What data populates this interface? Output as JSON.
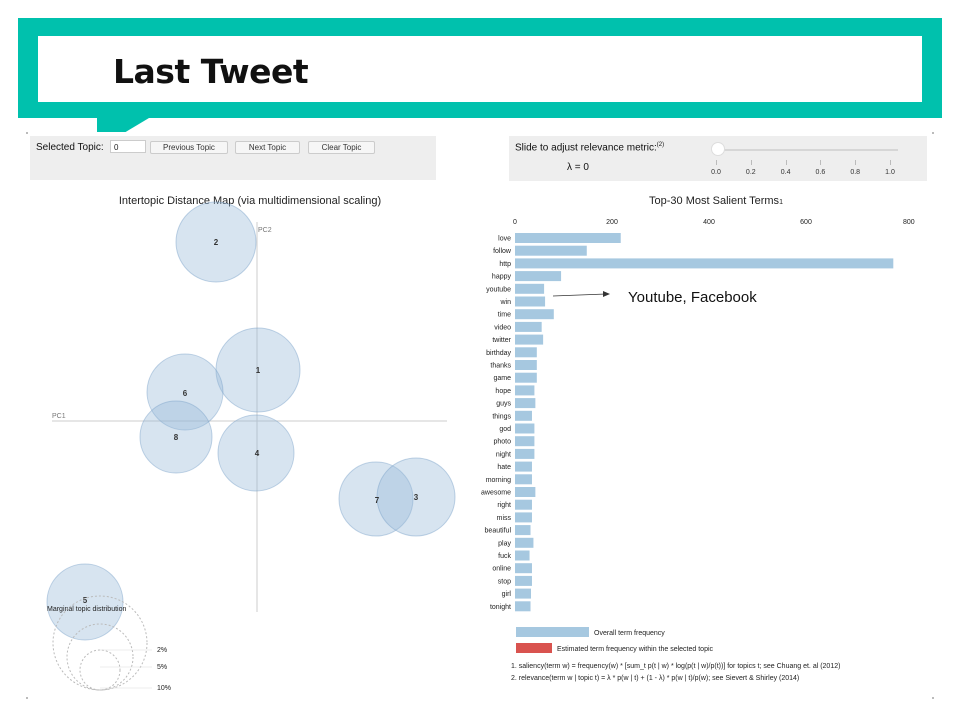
{
  "slide": {
    "title": "Last Tweet"
  },
  "left_controls": {
    "selected_label": "Selected Topic:",
    "selected_value": "0",
    "prev_label": "Previous Topic",
    "next_label": "Next Topic",
    "clear_label": "Clear Topic"
  },
  "right_controls": {
    "slider_label": "Slide to adjust relevance metric:",
    "slider_ref": "(2)",
    "lambda_text": "λ = 0",
    "lambda_value": 0,
    "tick_labels": [
      "0.0",
      "0.2",
      "0.4",
      "0.6",
      "0.8",
      "1.0"
    ]
  },
  "intertopic": {
    "title": "Intertopic Distance Map (via multidimensional scaling)",
    "pc1_label": "PC1",
    "pc2_label": "PC2",
    "topics": [
      "1",
      "2",
      "3",
      "4",
      "5",
      "6",
      "7",
      "8"
    ],
    "legend_title": "Marginal topic distribution",
    "legend_labels": [
      "2%",
      "5%",
      "10%"
    ]
  },
  "annotation": {
    "text": "Youtube, Facebook"
  },
  "chart_data": {
    "type": "bar",
    "title": "Top-30 Most Salient Terms",
    "title_ref": "1",
    "xlim": [
      0,
      800
    ],
    "xticks": [
      "0",
      "200",
      "400",
      "600",
      "800"
    ],
    "categories": [
      "love",
      "follow",
      "http",
      "happy",
      "youtube",
      "win",
      "time",
      "video",
      "twitter",
      "birthday",
      "thanks",
      "game",
      "hope",
      "guys",
      "things",
      "god",
      "photo",
      "night",
      "hate",
      "morning",
      "awesome",
      "right",
      "miss",
      "beautiful",
      "play",
      "fuck",
      "online",
      "stop",
      "girl",
      "tonight"
    ],
    "series": [
      {
        "name": "Overall term frequency",
        "values": [
          218,
          148,
          780,
          95,
          60,
          62,
          80,
          55,
          58,
          45,
          45,
          45,
          40,
          42,
          35,
          40,
          40,
          40,
          35,
          35,
          42,
          35,
          35,
          32,
          38,
          30,
          35,
          35,
          33,
          32
        ]
      }
    ],
    "legend": [
      {
        "label": "Overall term frequency",
        "color": "#a6c8e0"
      },
      {
        "label": "Estimated term frequency within the selected topic",
        "color": "#d9534f"
      }
    ],
    "footnotes": [
      "1. saliency(term w) = frequency(w) * [sum_t p(t | w) * log(p(t | w)/p(t))] for topics t; see Chuang et. al (2012)",
      "2. relevance(term w | topic t) = λ * p(w | t) + (1 - λ) * p(w | t)/p(w); see Sievert & Shirley (2014)"
    ]
  }
}
